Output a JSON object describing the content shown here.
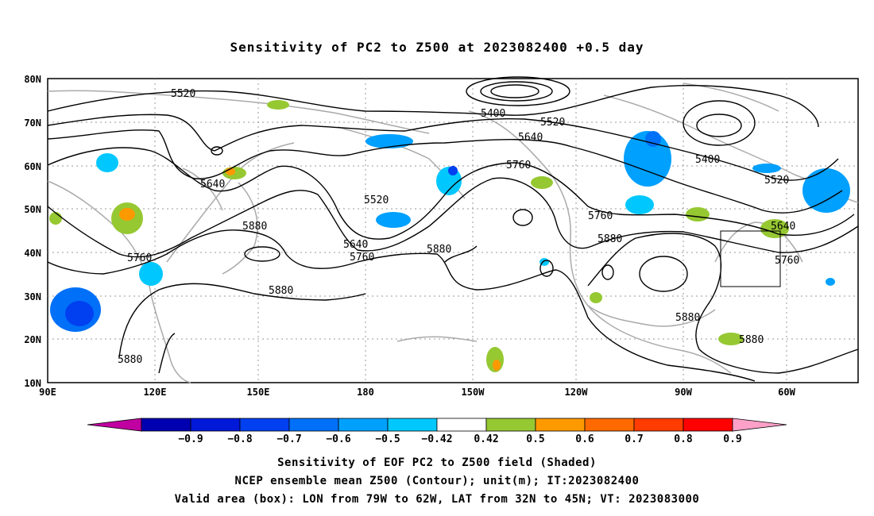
{
  "title": "Sensitivity of PC2 to Z500 at 2023082400 +0.5 day",
  "map": {
    "lat_labels": [
      "80N",
      "70N",
      "60N",
      "50N",
      "40N",
      "30N",
      "20N",
      "10N"
    ],
    "lon_labels": [
      "90E",
      "120E",
      "150E",
      "180",
      "150W",
      "120W",
      "90W",
      "60W"
    ],
    "contour_labels": [
      "5520",
      "5400",
      "5520",
      "5640",
      "5760",
      "5640",
      "5520",
      "5760",
      "5880",
      "5640",
      "5760",
      "5880",
      "5760",
      "5880",
      "5400",
      "5520",
      "5640",
      "5760",
      "5880",
      "5880",
      "5880",
      "5880"
    ],
    "valid_area_box": {
      "lon": [
        "79W",
        "62W"
      ],
      "lat": [
        "32N",
        "45N"
      ]
    },
    "colors": {
      "contour": "#000000",
      "coastline": "#aaaaaa",
      "grid": "#999999"
    }
  },
  "colorbar": {
    "labels": [
      "-0.9",
      "-0.8",
      "-0.7",
      "-0.6",
      "-0.5",
      "-0.42",
      "0.42",
      "0.5",
      "0.6",
      "0.7",
      "0.8",
      "0.9"
    ],
    "colors": [
      "#c000a0",
      "#0000b0",
      "#0018d8",
      "#0040f0",
      "#0070f8",
      "#00a0ff",
      "#00c8ff",
      "#ffffff",
      "#96c832",
      "#ff9900",
      "#ff6a00",
      "#ff3c00",
      "#ff0000",
      "#ffa0c8"
    ]
  },
  "captions": {
    "line1": "Sensitivity of EOF PC2 to Z500 field (Shaded)",
    "line2": "NCEP ensemble mean Z500 (Contour); unit(m); IT:2023082400",
    "line3": "Valid area (box): LON from 79W to 62W, LAT from 32N to 45N; VT: 2023083000"
  }
}
